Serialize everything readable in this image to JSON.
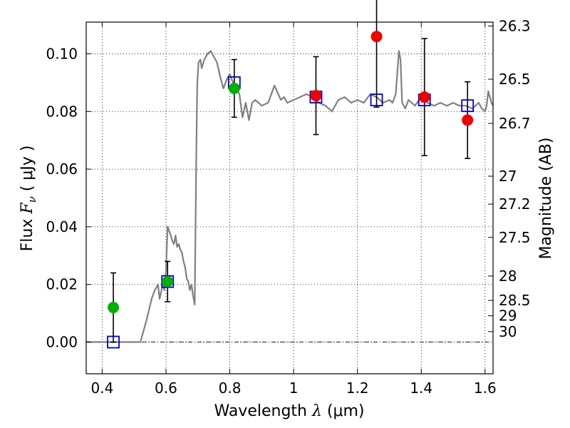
{
  "chart_data": {
    "type": "scatter",
    "xlabel": {
      "prefix": "Wavelength  ",
      "symbol": "λ",
      "units": " (μm)"
    },
    "ylabel": {
      "prefix": "Flux  ",
      "symbol": "F",
      "subscript": "ν",
      "units": "  ( μJy )"
    },
    "y2label": "Magnitude (AB)",
    "xlim": [
      0.35,
      1.625
    ],
    "ylim": [
      -0.011,
      0.111
    ],
    "grid": true,
    "x_ticks": [
      {
        "value": 0.4,
        "label": "0.4"
      },
      {
        "value": 0.6,
        "label": "0.6"
      },
      {
        "value": 0.8,
        "label": "0.8"
      },
      {
        "value": 1.0,
        "label": "1"
      },
      {
        "value": 1.2,
        "label": "1.2"
      },
      {
        "value": 1.4,
        "label": "1.4"
      },
      {
        "value": 1.6,
        "label": "1.6"
      }
    ],
    "y_ticks": [
      {
        "value": 0.0,
        "label": "0.00"
      },
      {
        "value": 0.02,
        "label": "0.02"
      },
      {
        "value": 0.04,
        "label": "0.04"
      },
      {
        "value": 0.06,
        "label": "0.06"
      },
      {
        "value": 0.08,
        "label": "0.08"
      },
      {
        "value": 0.1,
        "label": "0.10"
      }
    ],
    "y2_ticks": [
      {
        "mag": 26.3,
        "label": "26.3"
      },
      {
        "mag": 26.5,
        "label": "26.5"
      },
      {
        "mag": 26.7,
        "label": "26.7"
      },
      {
        "mag": 27,
        "label": "27"
      },
      {
        "mag": 27.2,
        "label": "27.2"
      },
      {
        "mag": 27.5,
        "label": "27.5"
      },
      {
        "mag": 28,
        "label": "28"
      },
      {
        "mag": 28.5,
        "label": "28.5"
      },
      {
        "mag": 29,
        "label": "29"
      },
      {
        "mag": 30,
        "label": "30"
      }
    ],
    "model_spectrum": {
      "color": "#808080",
      "x": [
        0.35,
        0.52,
        0.54,
        0.555,
        0.565,
        0.575,
        0.58,
        0.59,
        0.595,
        0.6,
        0.605,
        0.615,
        0.62,
        0.625,
        0.63,
        0.635,
        0.64,
        0.645,
        0.65,
        0.655,
        0.66,
        0.665,
        0.67,
        0.675,
        0.68,
        0.685,
        0.69,
        0.695,
        0.698,
        0.702,
        0.708,
        0.712,
        0.72,
        0.73,
        0.74,
        0.75,
        0.76,
        0.77,
        0.78,
        0.79,
        0.8,
        0.81,
        0.82,
        0.83,
        0.84,
        0.85,
        0.86,
        0.87,
        0.88,
        0.89,
        0.9,
        0.92,
        0.94,
        0.96,
        0.97,
        0.98,
        1.0,
        1.02,
        1.04,
        1.06,
        1.08,
        1.1,
        1.12,
        1.14,
        1.16,
        1.18,
        1.2,
        1.22,
        1.24,
        1.26,
        1.28,
        1.3,
        1.31,
        1.32,
        1.33,
        1.335,
        1.34,
        1.35,
        1.36,
        1.38,
        1.4,
        1.42,
        1.44,
        1.46,
        1.48,
        1.5,
        1.52,
        1.54,
        1.56,
        1.58,
        1.59,
        1.6,
        1.605,
        1.61,
        1.62,
        1.625
      ],
      "y": [
        0.0,
        0.0,
        0.008,
        0.015,
        0.018,
        0.02,
        0.015,
        0.02,
        0.018,
        0.025,
        0.04,
        0.037,
        0.035,
        0.034,
        0.037,
        0.033,
        0.034,
        0.032,
        0.031,
        0.028,
        0.026,
        0.022,
        0.021,
        0.018,
        0.02,
        0.016,
        0.013,
        0.065,
        0.089,
        0.097,
        0.098,
        0.095,
        0.098,
        0.1,
        0.101,
        0.099,
        0.097,
        0.092,
        0.088,
        0.091,
        0.093,
        0.09,
        0.088,
        0.086,
        0.078,
        0.083,
        0.077,
        0.083,
        0.084,
        0.083,
        0.082,
        0.083,
        0.089,
        0.084,
        0.085,
        0.083,
        0.084,
        0.085,
        0.086,
        0.085,
        0.083,
        0.082,
        0.08,
        0.084,
        0.085,
        0.083,
        0.084,
        0.083,
        0.086,
        0.085,
        0.083,
        0.084,
        0.083,
        0.086,
        0.101,
        0.098,
        0.083,
        0.081,
        0.084,
        0.082,
        0.085,
        0.083,
        0.082,
        0.083,
        0.082,
        0.083,
        0.082,
        0.082,
        0.081,
        0.083,
        0.081,
        0.08,
        0.082,
        0.087,
        0.083,
        0.082
      ]
    },
    "broadband_model": {
      "marker": "open-square",
      "color": "#0000cc",
      "x": [
        0.435,
        0.605,
        0.814,
        1.07,
        1.26,
        1.41,
        1.545
      ],
      "y": [
        0.0,
        0.021,
        0.09,
        0.085,
        0.084,
        0.084,
        0.082
      ]
    },
    "observed_detections": {
      "marker": "filled-circle",
      "color": "#00b000",
      "x": [
        0.435,
        0.605,
        0.814
      ],
      "y": [
        0.012,
        0.021,
        0.088
      ],
      "err": [
        0.012,
        0.007,
        0.01
      ]
    },
    "observed_nondetections": {
      "marker": "filled-circle",
      "color": "#ee0000",
      "x": [
        1.07,
        1.26,
        1.41,
        1.545
      ],
      "y": [
        0.0855,
        0.106,
        0.085,
        0.077
      ],
      "err": [
        0.0135,
        0.0245,
        0.0203,
        0.0133
      ]
    }
  }
}
